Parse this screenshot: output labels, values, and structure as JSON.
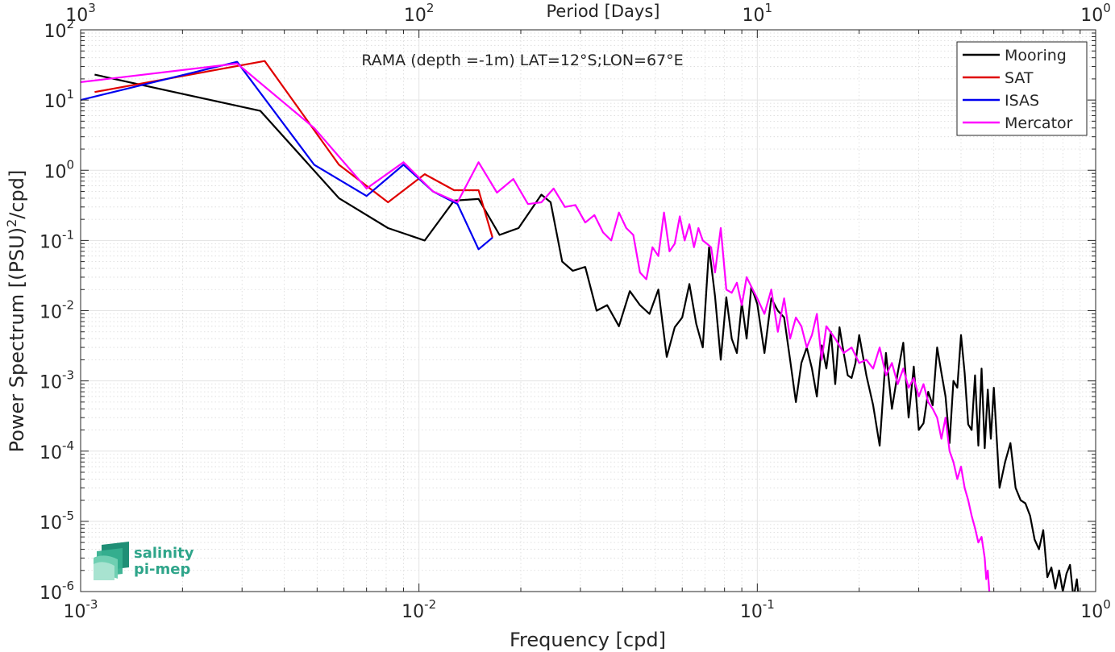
{
  "chart_data": {
    "type": "line",
    "title": "RAMA (depth =-1m) LAT=12°S;LON=67°E",
    "xlabel": "Frequency [cpd]",
    "ylabel": "Power Spectrum [(PSU)",
    "ylabel_sup": "2",
    "ylabel_tail": "/cpd]",
    "top_xlabel": "Period [Days]",
    "x_scale": "log",
    "y_scale": "log",
    "xlim": [
      0.001,
      1
    ],
    "ylim": [
      1e-06,
      100
    ],
    "grid": true,
    "legend_position": "top-right",
    "x_ticks": [
      {
        "base": "10",
        "exp": "-3",
        "value": 0.001
      },
      {
        "base": "10",
        "exp": "-2",
        "value": 0.01
      },
      {
        "base": "10",
        "exp": "-1",
        "value": 0.1
      },
      {
        "base": "10",
        "exp": "0",
        "value": 1
      }
    ],
    "top_ticks": [
      {
        "base": "10",
        "exp": "3",
        "freq": 0.001
      },
      {
        "base": "10",
        "exp": "2",
        "freq": 0.01
      },
      {
        "base": "10",
        "exp": "1",
        "freq": 0.1
      },
      {
        "base": "10",
        "exp": "0",
        "freq": 1
      }
    ],
    "y_ticks": [
      {
        "base": "10",
        "exp": "2",
        "value": 100
      },
      {
        "base": "10",
        "exp": "1",
        "value": 10
      },
      {
        "base": "10",
        "exp": "0",
        "value": 1
      },
      {
        "base": "10",
        "exp": "-1",
        "value": 0.1
      },
      {
        "base": "10",
        "exp": "-2",
        "value": 0.01
      },
      {
        "base": "10",
        "exp": "-3",
        "value": 0.001
      },
      {
        "base": "10",
        "exp": "-4",
        "value": 0.0001
      },
      {
        "base": "10",
        "exp": "-5",
        "value": 1e-05
      },
      {
        "base": "10",
        "exp": "-6",
        "value": 1e-06
      }
    ],
    "series": [
      {
        "name": "Mooring",
        "color": "#000000",
        "x": [
          0.0011,
          0.0034,
          0.0058,
          0.0081,
          0.0104,
          0.0127,
          0.015,
          0.0173,
          0.0197,
          0.023,
          0.0245,
          0.0265,
          0.0285,
          0.031,
          0.0335,
          0.036,
          0.039,
          0.042,
          0.045,
          0.048,
          0.051,
          0.054,
          0.057,
          0.06,
          0.063,
          0.066,
          0.069,
          0.072,
          0.075,
          0.078,
          0.081,
          0.084,
          0.087,
          0.09,
          0.093,
          0.096,
          0.1,
          0.105,
          0.11,
          0.115,
          0.12,
          0.125,
          0.13,
          0.135,
          0.14,
          0.145,
          0.15,
          0.155,
          0.16,
          0.165,
          0.17,
          0.175,
          0.18,
          0.185,
          0.19,
          0.195,
          0.2,
          0.21,
          0.22,
          0.23,
          0.24,
          0.25,
          0.26,
          0.27,
          0.28,
          0.29,
          0.3,
          0.31,
          0.32,
          0.33,
          0.34,
          0.35,
          0.36,
          0.37,
          0.38,
          0.39,
          0.4,
          0.41,
          0.42,
          0.43,
          0.44,
          0.45,
          0.46,
          0.47,
          0.48,
          0.49,
          0.5,
          0.52,
          0.54,
          0.56,
          0.58,
          0.6,
          0.62,
          0.64,
          0.66,
          0.68,
          0.7,
          0.72,
          0.74,
          0.76,
          0.78,
          0.8,
          0.82,
          0.84,
          0.86,
          0.88,
          0.9
        ],
        "y": [
          23,
          7,
          0.4,
          0.15,
          0.1,
          0.37,
          0.39,
          0.12,
          0.15,
          0.45,
          0.35,
          0.05,
          0.037,
          0.042,
          0.01,
          0.012,
          0.006,
          0.019,
          0.012,
          0.009,
          0.02,
          0.0022,
          0.0058,
          0.008,
          0.024,
          0.0065,
          0.003,
          0.08,
          0.016,
          0.002,
          0.0155,
          0.004,
          0.0025,
          0.013,
          0.004,
          0.022,
          0.0125,
          0.0025,
          0.015,
          0.01,
          0.008,
          0.002,
          0.0005,
          0.0018,
          0.003,
          0.0015,
          0.0006,
          0.0032,
          0.0015,
          0.005,
          0.0009,
          0.0058,
          0.0025,
          0.0012,
          0.0011,
          0.0018,
          0.0045,
          0.0012,
          0.00045,
          0.00012,
          0.0025,
          0.0004,
          0.0013,
          0.0035,
          0.0003,
          0.0016,
          0.0002,
          0.00025,
          0.0007,
          0.00045,
          0.003,
          0.0013,
          0.0006,
          0.00013,
          0.001,
          0.0008,
          0.0045,
          0.0013,
          0.00024,
          0.0002,
          0.0012,
          0.00012,
          0.0015,
          0.00011,
          0.00075,
          0.00015,
          0.0008,
          3e-05,
          7e-05,
          0.00013,
          3e-05,
          2e-05,
          1.8e-05,
          1.2e-05,
          5.5e-06,
          4e-06,
          7.5e-06,
          1.6e-06,
          2.2e-06,
          1.1e-06,
          2e-06,
          1e-06,
          1.8e-06,
          2.4e-06,
          8e-07,
          1.5e-06,
          5e-07
        ]
      },
      {
        "name": "SAT",
        "color": "#e00000",
        "x": [
          0.0011,
          0.0035,
          0.0058,
          0.007,
          0.0081,
          0.0104,
          0.0127,
          0.015,
          0.0165
        ],
        "y": [
          13,
          36,
          1.2,
          0.6,
          0.35,
          0.88,
          0.52,
          0.52,
          0.11
        ]
      },
      {
        "name": "ISAS",
        "color": "#0000f0",
        "x": [
          0.001,
          0.0029,
          0.0049,
          0.007,
          0.009,
          0.011,
          0.013,
          0.015,
          0.0165
        ],
        "y": [
          10,
          35,
          1.2,
          0.43,
          1.2,
          0.5,
          0.33,
          0.075,
          0.11
        ]
      },
      {
        "name": "Mercator",
        "color": "#ff00ff",
        "x": [
          0.001,
          0.0029,
          0.0049,
          0.007,
          0.009,
          0.011,
          0.013,
          0.015,
          0.017,
          0.019,
          0.021,
          0.023,
          0.025,
          0.027,
          0.029,
          0.031,
          0.033,
          0.035,
          0.037,
          0.039,
          0.041,
          0.043,
          0.045,
          0.047,
          0.049,
          0.051,
          0.053,
          0.055,
          0.057,
          0.059,
          0.061,
          0.063,
          0.065,
          0.067,
          0.069,
          0.071,
          0.073,
          0.075,
          0.078,
          0.081,
          0.084,
          0.087,
          0.09,
          0.093,
          0.096,
          0.1,
          0.105,
          0.11,
          0.115,
          0.12,
          0.125,
          0.13,
          0.135,
          0.14,
          0.145,
          0.15,
          0.155,
          0.16,
          0.17,
          0.18,
          0.19,
          0.2,
          0.21,
          0.22,
          0.23,
          0.24,
          0.25,
          0.26,
          0.27,
          0.28,
          0.29,
          0.3,
          0.31,
          0.32,
          0.33,
          0.34,
          0.35,
          0.36,
          0.37,
          0.38,
          0.39,
          0.4,
          0.41,
          0.42,
          0.43,
          0.44,
          0.45,
          0.46,
          0.47,
          0.475,
          0.48,
          0.485
        ],
        "y": [
          18,
          33,
          4,
          0.55,
          1.3,
          0.5,
          0.35,
          1.3,
          0.48,
          0.75,
          0.33,
          0.35,
          0.55,
          0.3,
          0.32,
          0.18,
          0.23,
          0.13,
          0.1,
          0.25,
          0.15,
          0.12,
          0.035,
          0.028,
          0.08,
          0.06,
          0.25,
          0.07,
          0.09,
          0.22,
          0.1,
          0.17,
          0.08,
          0.15,
          0.1,
          0.09,
          0.08,
          0.035,
          0.15,
          0.02,
          0.018,
          0.025,
          0.012,
          0.03,
          0.022,
          0.015,
          0.009,
          0.02,
          0.005,
          0.015,
          0.004,
          0.008,
          0.006,
          0.003,
          0.0045,
          0.009,
          0.002,
          0.006,
          0.004,
          0.0025,
          0.003,
          0.0018,
          0.002,
          0.0015,
          0.003,
          0.0012,
          0.0018,
          0.0009,
          0.0015,
          0.0008,
          0.0011,
          0.0006,
          0.0009,
          0.0005,
          0.0004,
          0.0003,
          0.00015,
          0.0003,
          0.0001,
          7e-05,
          4e-05,
          6e-05,
          3e-05,
          2e-05,
          1.2e-05,
          8e-06,
          5e-06,
          6e-06,
          3e-06,
          1.5e-06,
          2e-06,
          1e-06
        ]
      }
    ]
  },
  "logo": {
    "line1": "salinity",
    "line2": "pi-mep",
    "color": "#2fa58a"
  }
}
